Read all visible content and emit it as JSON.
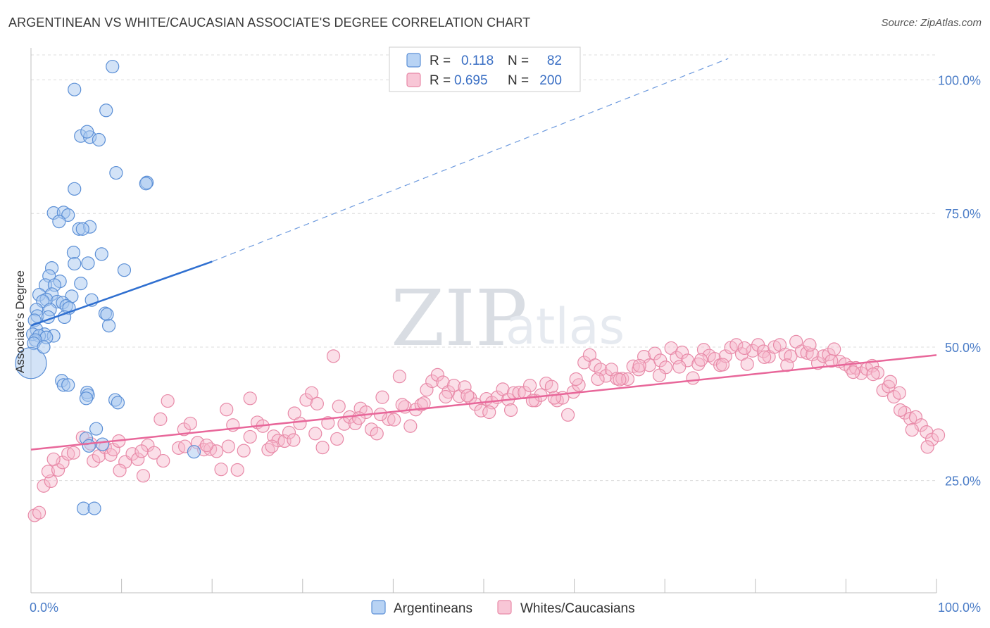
{
  "title": "ARGENTINEAN VS WHITE/CAUCASIAN ASSOCIATE'S DEGREE CORRELATION CHART",
  "source": "Source: ZipAtlas.com",
  "watermark": {
    "zip": "ZIP",
    "atlas": "atlas"
  },
  "colors": {
    "blue_fill": "#a8c8f0",
    "blue_stroke": "#5b8fd6",
    "blue_line": "#2f6fd0",
    "pink_fill": "#f6b8cc",
    "pink_stroke": "#e88aa8",
    "pink_line": "#e8679a",
    "grid": "#dcdcdc",
    "axis_label": "#4a7cc7"
  },
  "legend": {
    "rows": [
      {
        "r_label": "R =",
        "r_value": "0.118",
        "n_label": "N =",
        "n_value": "82"
      },
      {
        "r_label": "R =",
        "r_value": "0.695",
        "n_label": "N =",
        "n_value": "200"
      }
    ]
  },
  "bottom_legend": [
    "Argentineans",
    "Whites/Caucasians"
  ],
  "chart_data": {
    "type": "scatter",
    "title": "ARGENTINEAN VS WHITE/CAUCASIAN ASSOCIATE'S DEGREE CORRELATION CHART",
    "xlabel": "",
    "ylabel": "Associate's Degree",
    "xlim": [
      0,
      100
    ],
    "ylim": [
      4,
      106
    ],
    "x_tick_labels": [
      "0.0%",
      "100.0%"
    ],
    "y_ticks": [
      25,
      50,
      75,
      100
    ],
    "y_tick_labels": [
      "25.0%",
      "50.0%",
      "75.0%",
      "100.0%"
    ],
    "grid": true,
    "series": [
      {
        "name": "Argentineans",
        "R": 0.118,
        "N": 82,
        "trend": {
          "x0": 0.0,
          "y0": 54.0,
          "x1": 20.0,
          "y1": 66.0,
          "dashed_to_x": 77.0,
          "dashed_to_y": 104.0
        },
        "points": [
          [
            9.0,
            102.5
          ],
          [
            4.8,
            98.2
          ],
          [
            8.3,
            94.3
          ],
          [
            5.5,
            89.5
          ],
          [
            6.5,
            89.3
          ],
          [
            7.5,
            88.8
          ],
          [
            6.2,
            90.3
          ],
          [
            9.4,
            82.6
          ],
          [
            12.8,
            80.8
          ],
          [
            12.7,
            80.6
          ],
          [
            4.8,
            79.6
          ],
          [
            2.5,
            75.1
          ],
          [
            3.6,
            75.2
          ],
          [
            4.1,
            74.7
          ],
          [
            3.1,
            73.5
          ],
          [
            5.3,
            72.1
          ],
          [
            6.5,
            72.5
          ],
          [
            5.7,
            72.1
          ],
          [
            4.7,
            67.7
          ],
          [
            7.8,
            67.4
          ],
          [
            6.3,
            65.7
          ],
          [
            4.8,
            65.6
          ],
          [
            10.3,
            64.4
          ],
          [
            2.3,
            64.8
          ],
          [
            2.0,
            63.3
          ],
          [
            3.2,
            62.3
          ],
          [
            5.5,
            61.9
          ],
          [
            1.6,
            61.6
          ],
          [
            2.6,
            61.6
          ],
          [
            0.9,
            59.8
          ],
          [
            2.3,
            59.9
          ],
          [
            4.5,
            59.5
          ],
          [
            1.7,
            58.9
          ],
          [
            1.3,
            58.6
          ],
          [
            2.9,
            58.5
          ],
          [
            3.5,
            58.3
          ],
          [
            6.7,
            58.8
          ],
          [
            3.9,
            57.7
          ],
          [
            0.6,
            57.0
          ],
          [
            2.1,
            57.0
          ],
          [
            4.2,
            57.3
          ],
          [
            8.2,
            56.3
          ],
          [
            8.4,
            56.1
          ],
          [
            0.7,
            55.8
          ],
          [
            1.9,
            55.6
          ],
          [
            3.7,
            55.6
          ],
          [
            0.4,
            55.0
          ],
          [
            8.6,
            54.0
          ],
          [
            0.6,
            53.3
          ],
          [
            0.2,
            52.4
          ],
          [
            1.5,
            52.4
          ],
          [
            0.9,
            52.1
          ],
          [
            2.5,
            52.1
          ],
          [
            1.7,
            51.8
          ],
          [
            0.5,
            51.3
          ],
          [
            0.3,
            50.7
          ],
          [
            0.0,
            47.0
          ],
          [
            1.4,
            50.0
          ],
          [
            3.4,
            43.7
          ],
          [
            3.6,
            42.9
          ],
          [
            4.1,
            42.9
          ],
          [
            6.2,
            41.5
          ],
          [
            6.3,
            41.0
          ],
          [
            6.1,
            40.4
          ],
          [
            9.3,
            40.1
          ],
          [
            9.6,
            39.6
          ],
          [
            7.2,
            34.7
          ],
          [
            6.1,
            32.9
          ],
          [
            6.4,
            31.5
          ],
          [
            7.9,
            31.8
          ],
          [
            18.0,
            30.4
          ],
          [
            5.8,
            19.8
          ],
          [
            7.0,
            19.8
          ]
        ]
      },
      {
        "name": "Whites/Caucasians",
        "R": 0.695,
        "N": 200,
        "trend": {
          "x0": 0.0,
          "y0": 30.8,
          "x1": 100.0,
          "y1": 48.5
        },
        "points": [
          [
            0.4,
            18.5
          ],
          [
            0.9,
            19.0
          ],
          [
            1.4,
            24.0
          ],
          [
            2.2,
            24.9
          ],
          [
            1.9,
            26.7
          ],
          [
            3.0,
            27.0
          ],
          [
            3.5,
            28.4
          ],
          [
            4.1,
            30.0
          ],
          [
            2.5,
            29.0
          ],
          [
            4.7,
            30.2
          ],
          [
            5.7,
            33.1
          ],
          [
            6.6,
            31.9
          ],
          [
            6.9,
            28.7
          ],
          [
            7.5,
            29.6
          ],
          [
            8.2,
            31.2
          ],
          [
            8.8,
            29.8
          ],
          [
            9.1,
            30.8
          ],
          [
            9.7,
            32.4
          ],
          [
            10.4,
            28.5
          ],
          [
            11.2,
            30.0
          ],
          [
            11.8,
            29.0
          ],
          [
            12.4,
            25.9
          ],
          [
            12.9,
            31.6
          ],
          [
            13.6,
            30.2
          ],
          [
            14.3,
            36.5
          ],
          [
            15.1,
            39.9
          ],
          [
            16.3,
            31.1
          ],
          [
            16.9,
            34.6
          ],
          [
            17.6,
            35.7
          ],
          [
            18.4,
            32.1
          ],
          [
            19.1,
            30.8
          ],
          [
            19.8,
            30.9
          ],
          [
            20.5,
            30.5
          ],
          [
            21.0,
            27.1
          ],
          [
            21.6,
            38.3
          ],
          [
            22.3,
            35.4
          ],
          [
            22.8,
            27.0
          ],
          [
            23.5,
            30.6
          ],
          [
            24.2,
            40.4
          ],
          [
            25.0,
            35.9
          ],
          [
            25.6,
            35.2
          ],
          [
            26.2,
            30.8
          ],
          [
            26.8,
            33.3
          ],
          [
            27.3,
            32.5
          ],
          [
            28.0,
            32.4
          ],
          [
            28.5,
            34.0
          ],
          [
            29.1,
            37.6
          ],
          [
            29.7,
            35.7
          ],
          [
            30.4,
            40.1
          ],
          [
            31.0,
            41.4
          ],
          [
            31.6,
            39.4
          ],
          [
            32.2,
            31.2
          ],
          [
            32.8,
            35.8
          ],
          [
            33.4,
            48.3
          ],
          [
            34.0,
            38.9
          ],
          [
            34.6,
            35.6
          ],
          [
            35.2,
            36.9
          ],
          [
            35.8,
            35.7
          ],
          [
            36.4,
            38.5
          ],
          [
            37.0,
            37.8
          ],
          [
            37.6,
            34.6
          ],
          [
            38.2,
            33.8
          ],
          [
            38.8,
            40.6
          ],
          [
            39.5,
            36.5
          ],
          [
            40.1,
            36.4
          ],
          [
            40.7,
            44.5
          ],
          [
            41.3,
            38.8
          ],
          [
            41.9,
            35.2
          ],
          [
            42.5,
            38.3
          ],
          [
            43.1,
            39.2
          ],
          [
            43.7,
            42.0
          ],
          [
            44.3,
            43.6
          ],
          [
            44.9,
            44.8
          ],
          [
            45.5,
            43.4
          ],
          [
            46.1,
            41.6
          ],
          [
            46.7,
            42.8
          ],
          [
            47.3,
            40.8
          ],
          [
            47.9,
            42.5
          ],
          [
            48.5,
            40.5
          ],
          [
            49.1,
            39.3
          ],
          [
            49.7,
            38.1
          ],
          [
            50.3,
            40.3
          ],
          [
            50.9,
            39.6
          ],
          [
            51.5,
            40.6
          ],
          [
            52.1,
            42.1
          ],
          [
            52.7,
            40.2
          ],
          [
            53.3,
            41.4
          ],
          [
            53.9,
            41.5
          ],
          [
            54.5,
            41.5
          ],
          [
            55.1,
            42.8
          ],
          [
            55.7,
            40.0
          ],
          [
            56.3,
            41.0
          ],
          [
            56.9,
            43.2
          ],
          [
            57.5,
            42.6
          ],
          [
            58.1,
            40.0
          ],
          [
            58.7,
            40.5
          ],
          [
            59.3,
            37.3
          ],
          [
            59.9,
            41.6
          ],
          [
            60.5,
            42.9
          ],
          [
            61.1,
            47.1
          ],
          [
            61.7,
            48.5
          ],
          [
            62.3,
            46.6
          ],
          [
            62.9,
            45.8
          ],
          [
            63.5,
            44.6
          ],
          [
            64.1,
            45.8
          ],
          [
            64.7,
            44.1
          ],
          [
            65.3,
            44.1
          ],
          [
            65.9,
            44.0
          ],
          [
            66.5,
            46.4
          ],
          [
            67.1,
            45.8
          ],
          [
            67.7,
            48.2
          ],
          [
            68.3,
            46.6
          ],
          [
            68.9,
            48.8
          ],
          [
            69.5,
            47.5
          ],
          [
            70.1,
            46.2
          ],
          [
            70.7,
            49.8
          ],
          [
            71.3,
            48.0
          ],
          [
            71.9,
            49.0
          ],
          [
            72.5,
            47.5
          ],
          [
            73.1,
            44.2
          ],
          [
            73.7,
            46.8
          ],
          [
            74.3,
            49.5
          ],
          [
            74.9,
            48.4
          ],
          [
            75.5,
            47.8
          ],
          [
            76.1,
            46.6
          ],
          [
            76.7,
            48.3
          ],
          [
            77.3,
            49.9
          ],
          [
            77.9,
            50.4
          ],
          [
            78.5,
            48.7
          ],
          [
            79.1,
            46.8
          ],
          [
            79.7,
            49.3
          ],
          [
            80.3,
            50.4
          ],
          [
            80.9,
            49.2
          ],
          [
            81.5,
            48.2
          ],
          [
            82.1,
            50.0
          ],
          [
            82.7,
            50.4
          ],
          [
            83.3,
            48.6
          ],
          [
            83.9,
            48.3
          ],
          [
            84.5,
            51.0
          ],
          [
            85.1,
            49.2
          ],
          [
            85.7,
            48.9
          ],
          [
            86.3,
            48.6
          ],
          [
            86.9,
            47.0
          ],
          [
            87.5,
            48.3
          ],
          [
            88.1,
            48.6
          ],
          [
            88.7,
            49.6
          ],
          [
            89.3,
            47.3
          ],
          [
            89.9,
            46.8
          ],
          [
            90.5,
            46.1
          ],
          [
            91.1,
            46.1
          ],
          [
            91.7,
            45.1
          ],
          [
            92.3,
            45.9
          ],
          [
            92.9,
            46.5
          ],
          [
            93.5,
            45.2
          ],
          [
            94.1,
            41.9
          ],
          [
            94.7,
            42.6
          ],
          [
            95.3,
            40.7
          ],
          [
            95.9,
            41.4
          ],
          [
            96.5,
            37.7
          ],
          [
            97.1,
            36.6
          ],
          [
            97.7,
            36.9
          ],
          [
            98.3,
            35.4
          ],
          [
            98.9,
            34.1
          ],
          [
            99.5,
            32.7
          ],
          [
            100.2,
            33.5
          ],
          [
            99.0,
            31.3
          ],
          [
            97.3,
            34.5
          ],
          [
            96.0,
            38.2
          ],
          [
            94.9,
            43.5
          ],
          [
            93.0,
            44.9
          ],
          [
            90.8,
            45.3
          ],
          [
            88.4,
            47.4
          ],
          [
            86.0,
            50.4
          ],
          [
            83.5,
            46.6
          ],
          [
            81.0,
            48.1
          ],
          [
            78.8,
            49.8
          ],
          [
            76.4,
            46.7
          ],
          [
            74.0,
            47.6
          ],
          [
            71.6,
            46.3
          ],
          [
            69.4,
            44.7
          ],
          [
            67.2,
            46.5
          ],
          [
            65.0,
            43.9
          ],
          [
            62.6,
            44.0
          ],
          [
            60.2,
            44.0
          ],
          [
            57.8,
            40.5
          ],
          [
            55.4,
            40.0
          ],
          [
            53.0,
            38.2
          ],
          [
            50.6,
            37.8
          ],
          [
            48.2,
            40.9
          ],
          [
            45.8,
            40.7
          ],
          [
            43.4,
            39.5
          ],
          [
            41.0,
            39.2
          ],
          [
            38.6,
            37.4
          ],
          [
            36.2,
            36.7
          ],
          [
            33.8,
            32.8
          ],
          [
            31.4,
            33.8
          ],
          [
            29.0,
            32.6
          ],
          [
            26.6,
            31.4
          ],
          [
            24.2,
            33.2
          ],
          [
            21.8,
            31.4
          ],
          [
            19.4,
            31.6
          ],
          [
            17.0,
            31.4
          ],
          [
            14.6,
            28.7
          ],
          [
            12.2,
            30.5
          ],
          [
            9.8,
            26.9
          ]
        ]
      }
    ]
  }
}
